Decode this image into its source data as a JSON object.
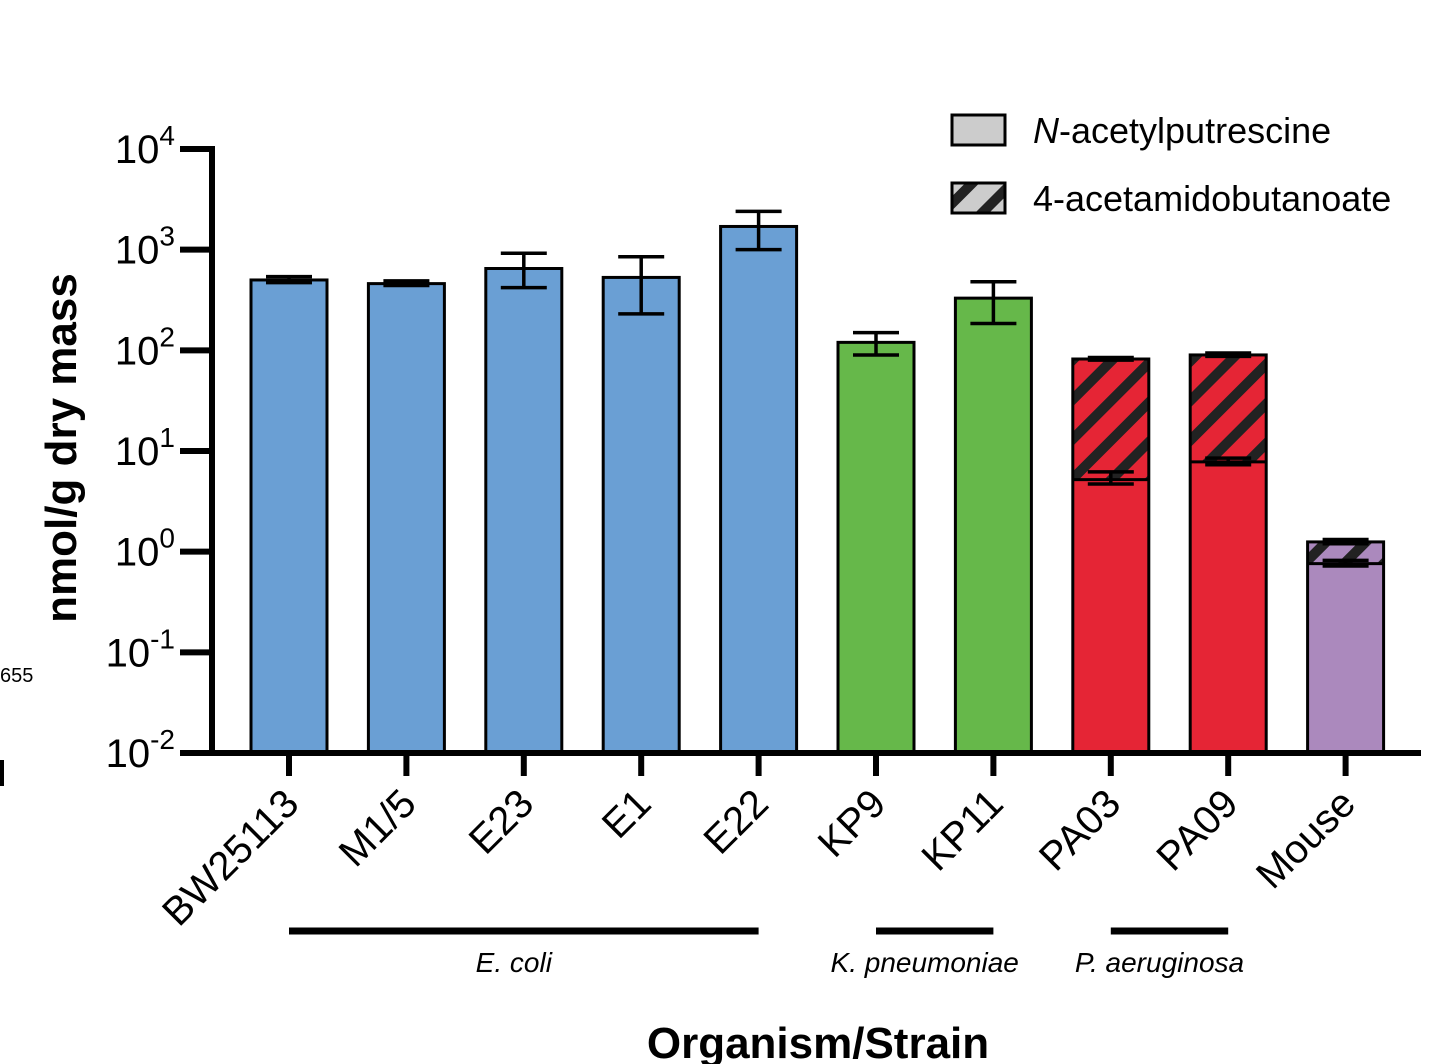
{
  "chart_data": {
    "type": "bar",
    "stacked": true,
    "y_scale": "log10",
    "ylabel": "nmol/g dry mass",
    "xlabel": "Organism/Strain",
    "ylim": [
      0.01,
      10000
    ],
    "y_ticks": [
      {
        "base": "10",
        "exp": "4",
        "value": 10000
      },
      {
        "base": "10",
        "exp": "3",
        "value": 1000
      },
      {
        "base": "10",
        "exp": "2",
        "value": 100
      },
      {
        "base": "10",
        "exp": "1",
        "value": 10
      },
      {
        "base": "10",
        "exp": "0",
        "value": 1
      },
      {
        "base": "10",
        "exp": "-1",
        "value": 0.1
      },
      {
        "base": "10",
        "exp": "-2",
        "value": 0.01
      }
    ],
    "categories": [
      "BW25113",
      "M1/5",
      "E23",
      "E1",
      "E22",
      "KP9",
      "KP11",
      "PA03",
      "PA09",
      "Mouse"
    ],
    "legend": [
      {
        "prefix": "N",
        "suffix": "-acetylputrescine",
        "pattern": "solid",
        "color": "#cccccc"
      },
      {
        "prefix": "",
        "suffix": "4-acetamidobutanoate",
        "pattern": "hatched",
        "color": "#cccccc"
      }
    ],
    "legend_position": "top-right",
    "bars": [
      {
        "category": "BW25113",
        "color": "#6a9fd4",
        "total": 500,
        "err_low": 470,
        "err_high": 540,
        "base": 500,
        "base_err": null,
        "hatched": false
      },
      {
        "category": "M1/5",
        "color": "#6a9fd4",
        "total": 460,
        "err_low": 440,
        "err_high": 490,
        "base": 460,
        "base_err": null,
        "hatched": false
      },
      {
        "category": "E23",
        "color": "#6a9fd4",
        "total": 650,
        "err_low": 420,
        "err_high": 920,
        "base": 650,
        "base_err": null,
        "hatched": false
      },
      {
        "category": "E1",
        "color": "#6a9fd4",
        "total": 530,
        "err_low": 230,
        "err_high": 850,
        "base": 530,
        "base_err": null,
        "hatched": false
      },
      {
        "category": "E22",
        "color": "#6a9fd4",
        "total": 1700,
        "err_low": 1000,
        "err_high": 2400,
        "base": 1700,
        "base_err": null,
        "hatched": false
      },
      {
        "category": "KP9",
        "color": "#66b84a",
        "total": 120,
        "err_low": 90,
        "err_high": 150,
        "base": 120,
        "base_err": null,
        "hatched": false
      },
      {
        "category": "KP11",
        "color": "#66b84a",
        "total": 330,
        "err_low": 185,
        "err_high": 480,
        "base": 330,
        "base_err": null,
        "hatched": false
      },
      {
        "category": "PA03",
        "color": "#e52535",
        "total": 82,
        "err_low": 80,
        "err_high": 85,
        "base": 5.2,
        "base_err": [
          4.7,
          6.2
        ],
        "hatched": true
      },
      {
        "category": "PA09",
        "color": "#e52535",
        "total": 90,
        "err_low": 87,
        "err_high": 94,
        "base": 7.8,
        "base_err": [
          7.3,
          8.5
        ],
        "hatched": true
      },
      {
        "category": "Mouse",
        "color": "#ab89bd",
        "total": 1.25,
        "err_low": 1.2,
        "err_high": 1.32,
        "base": 0.76,
        "base_err": [
          0.72,
          0.82
        ],
        "hatched": true
      }
    ],
    "groups": [
      {
        "label": "E. coli",
        "from": 0,
        "to": 4
      },
      {
        "label": "K. pneumoniae",
        "from": 5,
        "to": 6
      },
      {
        "label": "P. aeruginosa",
        "from": 7,
        "to": 8
      }
    ]
  },
  "edge_fragment": {
    "text": "655"
  }
}
